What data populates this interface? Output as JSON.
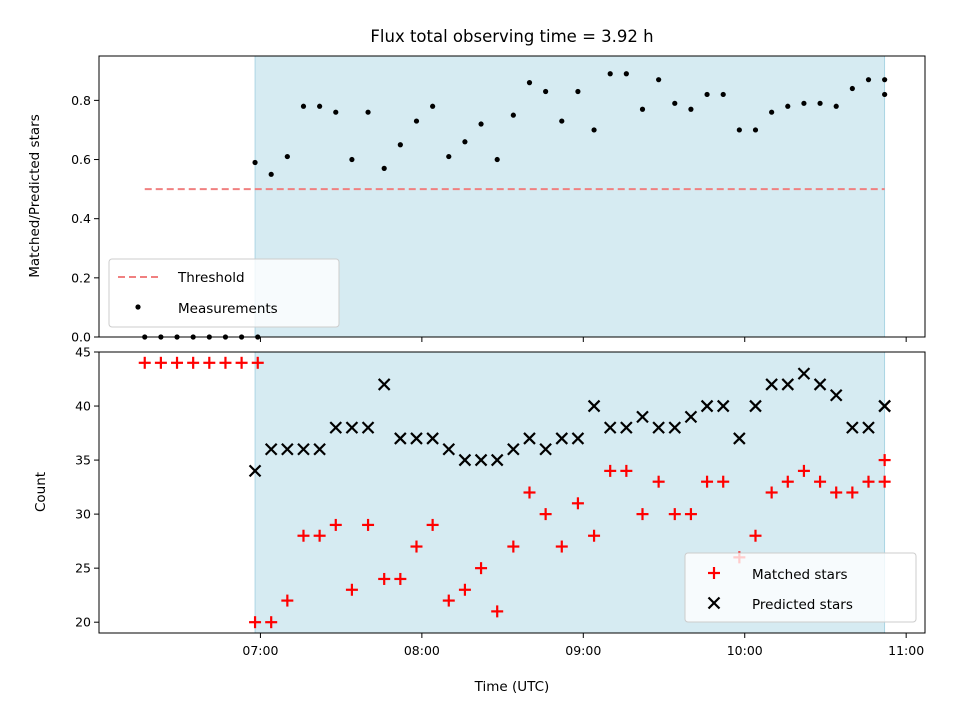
{
  "chart_data": [
    {
      "type": "scatter",
      "title": "Flux total observing time = 3.92 h",
      "xlabel": "",
      "ylabel": "Matched/Predicted stars",
      "xlim": [
        "06:00",
        "11:07"
      ],
      "ylim": [
        0,
        0.95
      ],
      "yticks": [
        "0.0",
        "0.2",
        "0.4",
        "0.6",
        "0.8"
      ],
      "ytick_values": [
        0,
        0.2,
        0.4,
        0.6,
        0.8
      ],
      "shaded_interval": [
        "06:58",
        "10:52"
      ],
      "shade_color": "#add8e6",
      "threshold": {
        "name": "Threshold",
        "value": 0.5,
        "x_range": [
          "06:17",
          "10:52"
        ],
        "color": "#f08080"
      },
      "series": [
        {
          "name": "Measurements",
          "color": "#000000",
          "x": [
            "06:17",
            "06:23",
            "06:29",
            "06:35",
            "06:41",
            "06:47",
            "06:53",
            "06:59",
            "06:58",
            "07:04",
            "07:10",
            "07:16",
            "07:22",
            "07:28",
            "07:34",
            "07:40",
            "07:46",
            "07:52",
            "07:58",
            "08:04",
            "08:10",
            "08:16",
            "08:22",
            "08:28",
            "08:34",
            "08:40",
            "08:46",
            "08:52",
            "08:58",
            "09:04",
            "09:10",
            "09:16",
            "09:22",
            "09:28",
            "09:34",
            "09:40",
            "09:46",
            "09:52",
            "09:58",
            "10:04",
            "10:10",
            "10:16",
            "10:22",
            "10:28",
            "10:34",
            "10:40",
            "10:46",
            "10:52",
            "10:52"
          ],
          "y": [
            0,
            0,
            0,
            0,
            0,
            0,
            0,
            0,
            0.59,
            0.55,
            0.61,
            0.78,
            0.78,
            0.76,
            0.6,
            0.76,
            0.57,
            0.65,
            0.73,
            0.78,
            0.61,
            0.66,
            0.72,
            0.6,
            0.75,
            0.86,
            0.83,
            0.73,
            0.83,
            0.7,
            0.89,
            0.89,
            0.77,
            0.87,
            0.79,
            0.77,
            0.82,
            0.82,
            0.7,
            0.7,
            0.76,
            0.78,
            0.79,
            0.79,
            0.78,
            0.84,
            0.87,
            0.87,
            0.82
          ]
        }
      ],
      "legend": {
        "location": "lower-left",
        "entries": [
          "Threshold",
          "Measurements"
        ]
      }
    },
    {
      "type": "scatter",
      "title": "",
      "xlabel": "Time (UTC)",
      "ylabel": "Count",
      "xticks": [
        "07:00",
        "08:00",
        "09:00",
        "10:00",
        "11:00"
      ],
      "ylim": [
        19,
        45
      ],
      "yticks": [
        "20",
        "25",
        "30",
        "35",
        "40",
        "45"
      ],
      "ytick_values": [
        20,
        25,
        30,
        35,
        40,
        45
      ],
      "shaded_interval": [
        "06:58",
        "10:52"
      ],
      "series": [
        {
          "name": "Matched stars",
          "marker": "+",
          "color": "#ff0000",
          "x": [
            "06:17",
            "06:23",
            "06:29",
            "06:35",
            "06:41",
            "06:47",
            "06:53",
            "06:59",
            "06:58",
            "07:04",
            "07:10",
            "07:16",
            "07:22",
            "07:28",
            "07:34",
            "07:40",
            "07:46",
            "07:52",
            "07:58",
            "08:04",
            "08:10",
            "08:16",
            "08:22",
            "08:28",
            "08:34",
            "08:40",
            "08:46",
            "08:52",
            "08:58",
            "09:04",
            "09:10",
            "09:16",
            "09:22",
            "09:28",
            "09:34",
            "09:40",
            "09:46",
            "09:52",
            "09:58",
            "10:04",
            "10:10",
            "10:16",
            "10:22",
            "10:28",
            "10:34",
            "10:40",
            "10:46",
            "10:52",
            "10:52"
          ],
          "y": [
            44,
            44,
            44,
            44,
            44,
            44,
            44,
            44,
            20,
            20,
            22,
            28,
            28,
            29,
            23,
            29,
            24,
            24,
            27,
            29,
            22,
            23,
            25,
            21,
            27,
            32,
            30,
            27,
            31,
            28,
            34,
            34,
            30,
            33,
            30,
            30,
            33,
            33,
            26,
            28,
            32,
            33,
            34,
            33,
            32,
            32,
            33,
            35,
            33
          ]
        },
        {
          "name": "Predicted stars",
          "marker": "x",
          "color": "#000000",
          "x": [
            "06:58",
            "07:04",
            "07:10",
            "07:16",
            "07:22",
            "07:28",
            "07:34",
            "07:40",
            "07:46",
            "07:52",
            "07:58",
            "08:04",
            "08:10",
            "08:16",
            "08:22",
            "08:28",
            "08:34",
            "08:40",
            "08:46",
            "08:52",
            "08:58",
            "09:04",
            "09:10",
            "09:16",
            "09:22",
            "09:28",
            "09:34",
            "09:40",
            "09:46",
            "09:52",
            "09:58",
            "10:04",
            "10:10",
            "10:16",
            "10:22",
            "10:28",
            "10:34",
            "10:40",
            "10:46",
            "10:52",
            "10:52"
          ],
          "y": [
            34,
            36,
            36,
            36,
            36,
            38,
            38,
            38,
            42,
            37,
            37,
            37,
            36,
            35,
            35,
            35,
            36,
            37,
            36,
            37,
            37,
            40,
            38,
            38,
            39,
            38,
            38,
            39,
            40,
            40,
            37,
            40,
            42,
            42,
            43,
            42,
            41,
            38,
            38,
            40,
            40
          ]
        }
      ],
      "legend": {
        "location": "lower-right",
        "entries": [
          "Matched stars",
          "Predicted stars"
        ]
      }
    }
  ]
}
